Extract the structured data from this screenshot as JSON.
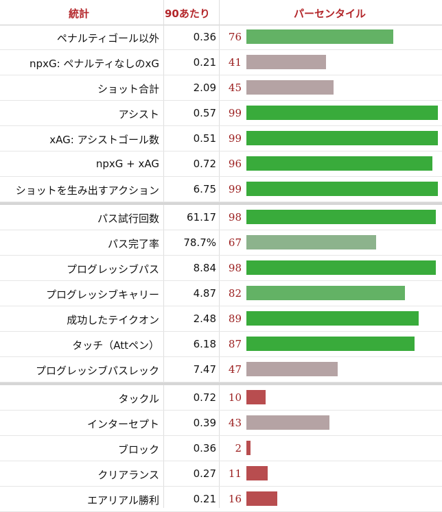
{
  "headers": {
    "stat": "統計",
    "per90": "90あたり",
    "percentile": "パーセンタイル"
  },
  "colors": {
    "header_text": "#b3262a",
    "pct_text": "#9a1c1c",
    "elite": "#39ab3b",
    "good": "#63b265",
    "above_avg": "#8cb38c",
    "average": "#b5a3a4",
    "low": "#b84d4f"
  },
  "chart_data": {
    "type": "bar",
    "orientation": "horizontal",
    "xlim": [
      0,
      100
    ],
    "groups": [
      {
        "rows": [
          {
            "stat": "ペナルティゴール以外",
            "per90": "0.36",
            "percentile": 76
          },
          {
            "stat": "npxG: ペナルティなしのxG",
            "per90": "0.21",
            "percentile": 41
          },
          {
            "stat": "ショット合計",
            "per90": "2.09",
            "percentile": 45
          },
          {
            "stat": "アシスト",
            "per90": "0.57",
            "percentile": 99
          },
          {
            "stat": "xAG: アシストゴール数",
            "per90": "0.51",
            "percentile": 99
          },
          {
            "stat": "npxG + xAG",
            "per90": "0.72",
            "percentile": 96
          },
          {
            "stat": "ショットを生み出すアクション",
            "per90": "6.75",
            "percentile": 99
          }
        ]
      },
      {
        "rows": [
          {
            "stat": "パス試行回数",
            "per90": "61.17",
            "percentile": 98
          },
          {
            "stat": "パス完了率",
            "per90": "78.7%",
            "percentile": 67
          },
          {
            "stat": "プログレッシブパス",
            "per90": "8.84",
            "percentile": 98
          },
          {
            "stat": "プログレッシブキャリー",
            "per90": "4.87",
            "percentile": 82
          },
          {
            "stat": "成功したテイクオン",
            "per90": "2.48",
            "percentile": 89
          },
          {
            "stat": "タッチ（Attペン）",
            "per90": "6.18",
            "percentile": 87
          },
          {
            "stat": "プログレッシブパスレック",
            "per90": "7.47",
            "percentile": 47
          }
        ]
      },
      {
        "rows": [
          {
            "stat": "タックル",
            "per90": "0.72",
            "percentile": 10
          },
          {
            "stat": "インターセプト",
            "per90": "0.39",
            "percentile": 43
          },
          {
            "stat": "ブロック",
            "per90": "0.36",
            "percentile": 2
          },
          {
            "stat": "クリアランス",
            "per90": "0.27",
            "percentile": 11
          },
          {
            "stat": "エアリアル勝利",
            "per90": "0.21",
            "percentile": 16
          }
        ]
      }
    ]
  }
}
